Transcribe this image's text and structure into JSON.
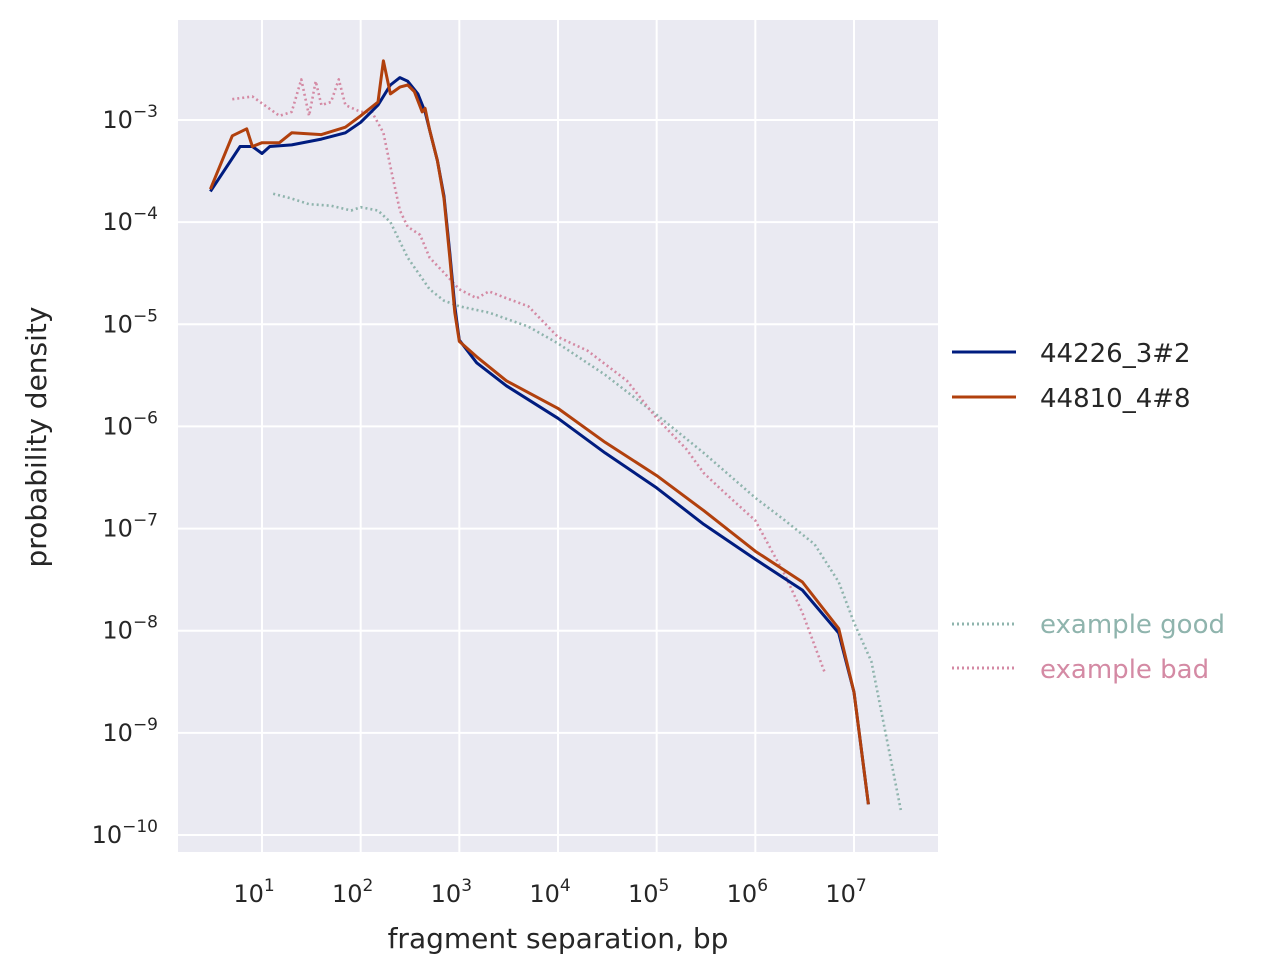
{
  "chart_data": {
    "type": "line",
    "xlabel": "fragment separation, bp",
    "ylabel": "probability density",
    "x_scale": "log",
    "y_scale": "log",
    "xlim": [
      1.5,
      60000000
    ],
    "ylim": [
      6e-11,
      0.01
    ],
    "x_ticks": [
      {
        "base": "10",
        "exp": "1",
        "value": 10
      },
      {
        "base": "10",
        "exp": "2",
        "value": 100
      },
      {
        "base": "10",
        "exp": "3",
        "value": 1000
      },
      {
        "base": "10",
        "exp": "4",
        "value": 10000
      },
      {
        "base": "10",
        "exp": "5",
        "value": 100000
      },
      {
        "base": "10",
        "exp": "6",
        "value": 1000000
      },
      {
        "base": "10",
        "exp": "7",
        "value": 10000000
      }
    ],
    "y_ticks": [
      {
        "base": "10",
        "exp": "−3",
        "value": 0.001
      },
      {
        "base": "10",
        "exp": "−4",
        "value": 0.0001
      },
      {
        "base": "10",
        "exp": "−5",
        "value": 1e-05
      },
      {
        "base": "10",
        "exp": "−6",
        "value": 1e-06
      },
      {
        "base": "10",
        "exp": "−7",
        "value": 1e-07
      },
      {
        "base": "10",
        "exp": "−8",
        "value": 1e-08
      },
      {
        "base": "10",
        "exp": "−9",
        "value": 1e-09
      },
      {
        "base": "10",
        "exp": "−10",
        "value": 1e-10
      }
    ],
    "grid": true,
    "background": "#eaeaf2",
    "legend_placement": "right",
    "series": [
      {
        "name": "44226_3#2",
        "color": "#001c7f",
        "style": "solid",
        "x": [
          3,
          6,
          8,
          10,
          12,
          20,
          40,
          70,
          100,
          150,
          200,
          250,
          300,
          380,
          450,
          500,
          600,
          700,
          800,
          900,
          1000,
          1500,
          3000,
          10000,
          30000,
          100000,
          300000,
          1000000,
          3000000,
          7000000,
          10000000,
          14000000
        ],
        "y": [
          0.0002,
          0.00055,
          0.00055,
          0.00047,
          0.00055,
          0.00057,
          0.00065,
          0.00075,
          0.00095,
          0.0014,
          0.0022,
          0.0026,
          0.0024,
          0.0018,
          0.0012,
          0.0008,
          0.0004,
          0.00018,
          5e-05,
          1.5e-05,
          7e-06,
          4.2e-06,
          2.5e-06,
          1.2e-06,
          5.5e-07,
          2.5e-07,
          1.1e-07,
          5e-08,
          2.5e-08,
          9.5e-09,
          2.5e-09,
          2e-10
        ]
      },
      {
        "name": "44810_4#8",
        "color": "#b1400d",
        "style": "solid",
        "x": [
          3,
          5,
          7,
          8,
          10,
          15,
          20,
          40,
          70,
          100,
          150,
          170,
          200,
          250,
          300,
          350,
          420,
          450,
          500,
          600,
          700,
          800,
          900,
          1000,
          1500,
          3000,
          10000,
          30000,
          100000,
          300000,
          1000000,
          3000000,
          7000000,
          10000000,
          14000000
        ],
        "y": [
          0.00021,
          0.0007,
          0.00082,
          0.00055,
          0.0006,
          0.0006,
          0.00075,
          0.00072,
          0.00085,
          0.0011,
          0.0015,
          0.0038,
          0.0018,
          0.0021,
          0.0022,
          0.0019,
          0.0012,
          0.0013,
          0.0008,
          0.0004,
          0.00017,
          4.5e-05,
          1.3e-05,
          6.8e-06,
          4.8e-06,
          2.8e-06,
          1.5e-06,
          7e-07,
          3.3e-07,
          1.5e-07,
          6e-08,
          3e-08,
          1.05e-08,
          2.5e-09,
          2e-10
        ]
      },
      {
        "name": "example good",
        "color": "#8fb4ad",
        "style": "dotted",
        "x": [
          13,
          20,
          30,
          50,
          80,
          100,
          150,
          200,
          300,
          500,
          700,
          1000,
          2000,
          5000,
          10000,
          30000,
          100000,
          300000,
          1000000,
          2000000,
          4000000,
          7000000,
          10000000,
          15000000,
          30000000
        ],
        "y": [
          0.00019,
          0.00017,
          0.00015,
          0.000145,
          0.00013,
          0.00014,
          0.00013,
          0.0001,
          4.5e-05,
          2.2e-05,
          1.7e-05,
          1.5e-05,
          1.3e-05,
          9.5e-06,
          6.5e-06,
          3.2e-06,
          1.3e-06,
          5.5e-07,
          2e-07,
          1.2e-07,
          7e-08,
          3e-08,
          1.2e-08,
          5e-09,
          1.7e-10
        ]
      },
      {
        "name": "example bad",
        "color": "#d48aa4",
        "style": "dotted",
        "x": [
          5,
          8,
          15,
          20,
          25,
          30,
          35,
          40,
          50,
          60,
          70,
          100,
          130,
          170,
          200,
          250,
          300,
          400,
          500,
          700,
          1000,
          1500,
          2000,
          3000,
          5000,
          10000,
          20000,
          50000,
          100000,
          200000,
          300000,
          500000,
          1000000,
          2000000,
          3000000,
          5000000
        ],
        "y": [
          0.0016,
          0.0017,
          0.0011,
          0.0012,
          0.0025,
          0.0011,
          0.0024,
          0.0014,
          0.0015,
          0.0025,
          0.0014,
          0.0012,
          0.0012,
          0.00075,
          0.00035,
          0.00013,
          9e-05,
          7.5e-05,
          4.5e-05,
          3.2e-05,
          2.2e-05,
          1.8e-05,
          2.1e-05,
          1.8e-05,
          1.5e-05,
          7.5e-06,
          5.5e-06,
          2.8e-06,
          1.2e-06,
          6e-07,
          3.5e-07,
          2.2e-07,
          1.2e-07,
          3.5e-08,
          1.5e-08,
          4e-09
        ]
      }
    ]
  }
}
